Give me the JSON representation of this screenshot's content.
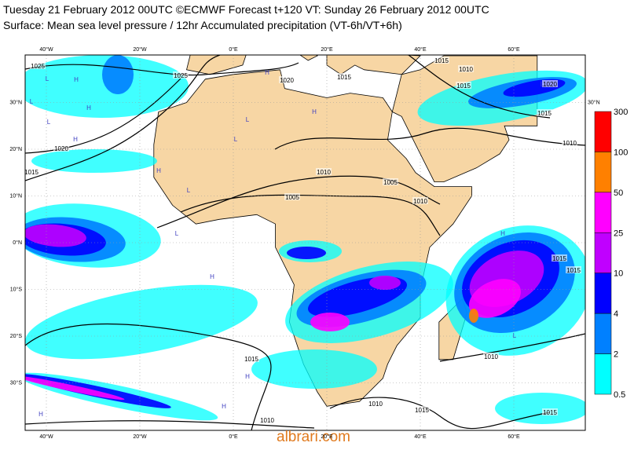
{
  "header": {
    "title": "Tuesday 21 February 2012 00UTC ©ECMWF Forecast t+120 VT: Sunday 26 February 2012 00UTC",
    "subtitle": "Surface: Mean sea level pressure / 12hr Accumulated precipitation (VT-6h/VT+6h)"
  },
  "map": {
    "lon_labels": [
      "40°W",
      "20°W",
      "0°E",
      "20°E",
      "40°E",
      "60°E"
    ],
    "lat_labels": [
      "30°N",
      "20°N",
      "10°N",
      "0°N",
      "10°S",
      "20°S",
      "30°S"
    ],
    "right_lat_label": "30°N",
    "isobar_labels": [
      "1025",
      "1025",
      "1020",
      "1015",
      "1020",
      "1015",
      "1015",
      "1010",
      "1015",
      "1020",
      "1015",
      "1010",
      "1010",
      "1005",
      "1005",
      "1010",
      "1015",
      "1010",
      "1010",
      "1015",
      "1015",
      "1015",
      "1015",
      "1010"
    ],
    "pressure_centers": [
      "L",
      "H",
      "L",
      "H",
      "L",
      "H",
      "H",
      "L",
      "H",
      "L",
      "H",
      "L",
      "H",
      "L",
      "H",
      "L",
      "H",
      "H",
      "L",
      "H"
    ]
  },
  "legend": {
    "labels": [
      "300",
      "100",
      "50",
      "25",
      "10",
      "4",
      "2",
      "0.5"
    ],
    "colors": [
      "#ff0000",
      "#ff8000",
      "#ff00ff",
      "#c000ff",
      "#0000ff",
      "#0080ff",
      "#00ffff"
    ]
  },
  "watermark": "albrari.com"
}
